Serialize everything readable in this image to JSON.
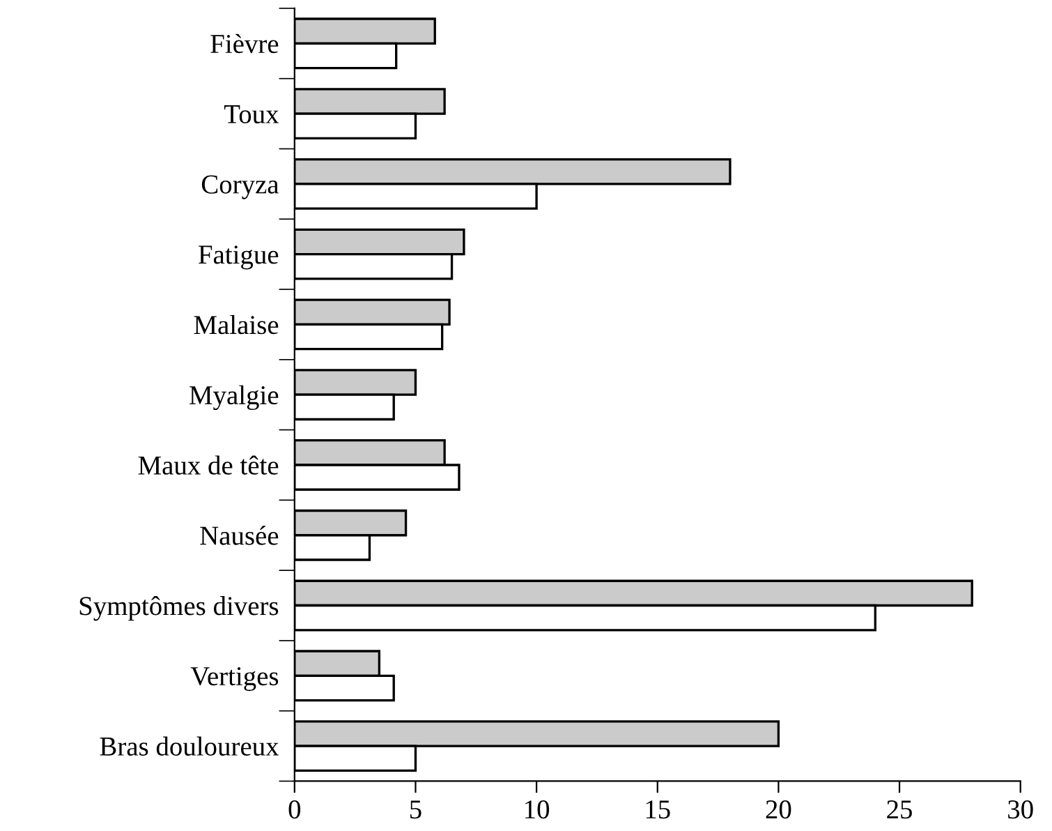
{
  "chart_data": {
    "type": "bar",
    "orientation": "horizontal",
    "categories": [
      "Fièvre",
      "Toux",
      "Coryza",
      "Fatigue",
      "Malaise",
      "Myalgie",
      "Maux de tête",
      "Nausée",
      "Symptômes divers",
      "Vertiges",
      "Bras douloureux"
    ],
    "series": [
      {
        "color": "#cbcbcb",
        "values": [
          5.8,
          6.2,
          18,
          7,
          6.4,
          5,
          6.2,
          4.6,
          28,
          3.5,
          20
        ]
      },
      {
        "color": "#ffffff",
        "values": [
          4.2,
          5,
          10,
          6.5,
          6.1,
          4.1,
          6.8,
          3.1,
          24,
          4.1,
          5
        ]
      }
    ],
    "xlim": [
      0,
      30
    ],
    "xticks": [
      0,
      5,
      10,
      15,
      20,
      25,
      30
    ],
    "grid": false,
    "legend": false
  }
}
